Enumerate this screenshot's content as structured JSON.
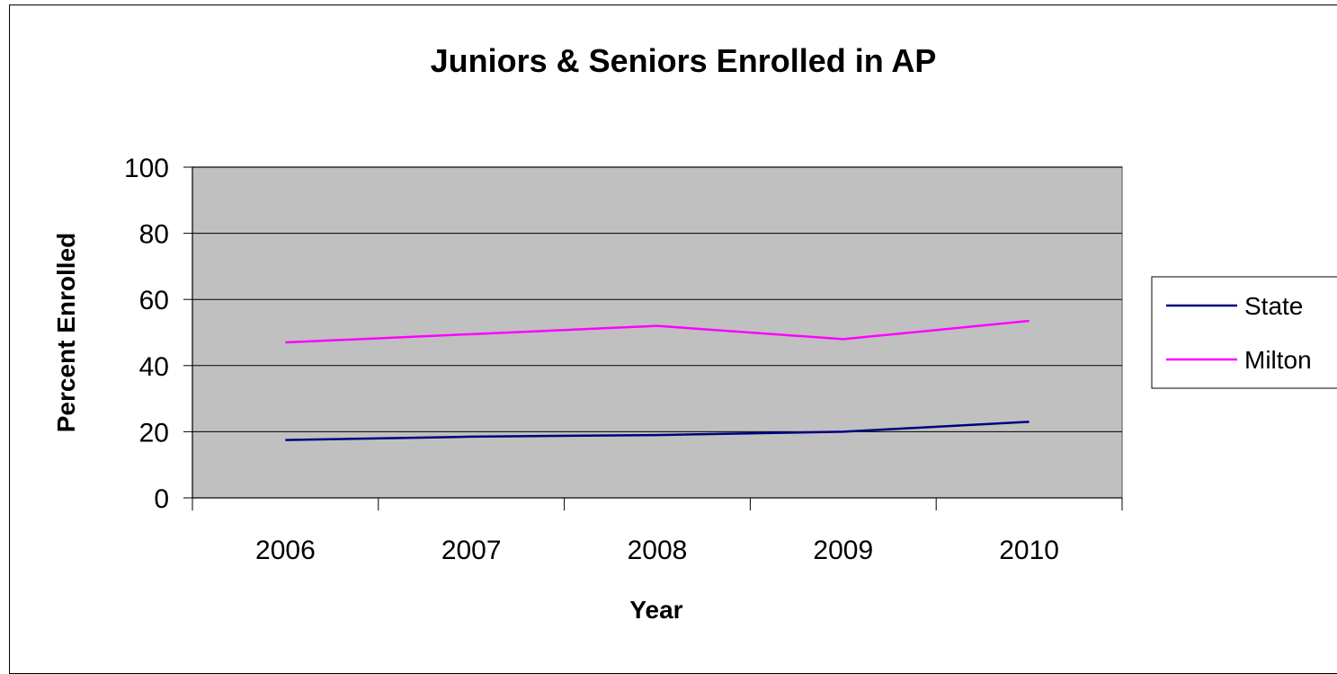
{
  "chart_data": {
    "type": "line",
    "title": "Juniors & Seniors Enrolled in AP",
    "xlabel": "Year",
    "ylabel": "Percent Enrolled",
    "categories": [
      "2006",
      "2007",
      "2008",
      "2009",
      "2010"
    ],
    "ylim": [
      0,
      100
    ],
    "yticks": [
      0,
      20,
      40,
      60,
      80,
      100
    ],
    "grid": true,
    "legend_position": "right",
    "plot_background": "#C0C0C0",
    "series": [
      {
        "name": "State",
        "color": "#000080",
        "values": [
          17.5,
          18.5,
          19,
          20,
          23
        ]
      },
      {
        "name": "Milton",
        "color": "#FF00FF",
        "values": [
          47,
          49.5,
          52,
          48,
          53.5
        ]
      }
    ]
  }
}
